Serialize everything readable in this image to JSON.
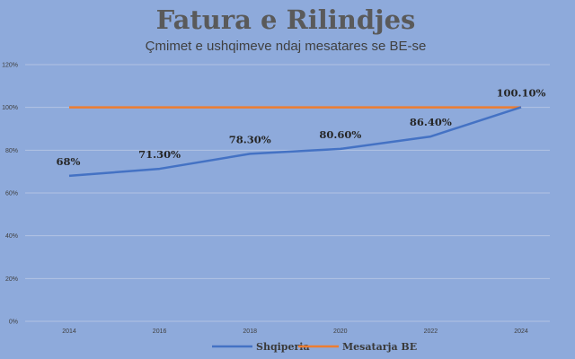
{
  "chart_data": {
    "type": "line",
    "title": "Fatura e Rilindjes",
    "subtitle": "Çmimet e ushqimeve ndaj mesatares se BE-se",
    "x": [
      "2014",
      "2016",
      "2018",
      "2020",
      "2022",
      "2024"
    ],
    "ylim": [
      0,
      120
    ],
    "yticks": [
      0,
      20,
      40,
      60,
      80,
      100,
      120
    ],
    "ytick_labels": [
      "0%",
      "20%",
      "40%",
      "60%",
      "80%",
      "100%",
      "120%"
    ],
    "grid": true,
    "legend_position": "bottom",
    "series": [
      {
        "name": "Shqiperia",
        "color": "#4472c4",
        "values": [
          68,
          71.3,
          78.3,
          80.6,
          86.4,
          100.1
        ],
        "labels": [
          "68%",
          "71.30%",
          "78.30%",
          "80.60%",
          "86.40%",
          "100.10%"
        ]
      },
      {
        "name": "Mesatarja BE",
        "color": "#ed7d31",
        "values": [
          100,
          100,
          100,
          100,
          100,
          100
        ]
      }
    ]
  }
}
